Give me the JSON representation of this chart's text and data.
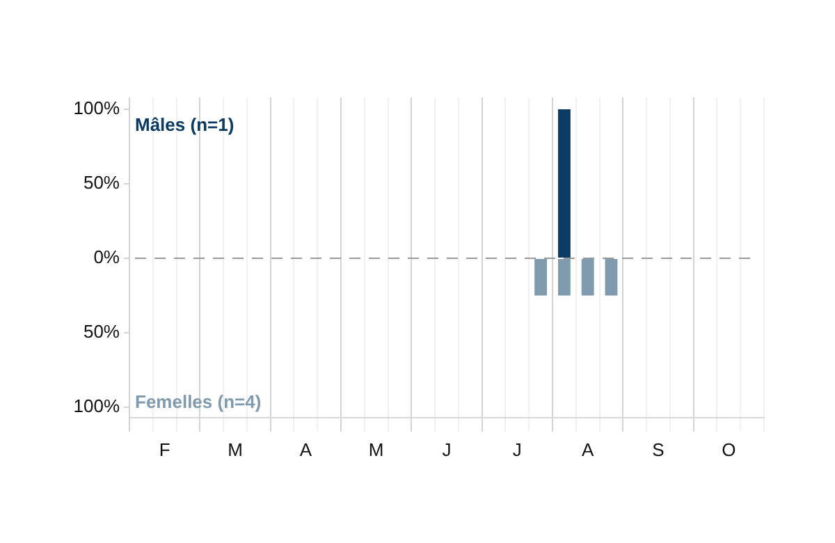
{
  "chart_data": {
    "type": "bar",
    "stacked": true,
    "categories": [
      null,
      "F",
      null,
      null,
      "M",
      null,
      null,
      "A",
      null,
      null,
      "M",
      null,
      null,
      "J",
      null,
      null,
      "J",
      null,
      null,
      "A",
      null,
      null,
      "S",
      null,
      null,
      "O",
      null
    ],
    "series": [
      {
        "name": "Mâles (n=1)",
        "color": "#0b3a63",
        "values": [
          null,
          null,
          null,
          null,
          null,
          null,
          null,
          null,
          null,
          null,
          null,
          null,
          null,
          null,
          null,
          null,
          null,
          null,
          100,
          null,
          null,
          null,
          null,
          null,
          null,
          null,
          null
        ]
      },
      {
        "name": "Femelles (n=4)",
        "color": "#7f9bad",
        "values": [
          null,
          null,
          null,
          null,
          null,
          null,
          null,
          null,
          null,
          null,
          null,
          null,
          null,
          null,
          null,
          null,
          null,
          -25,
          -25,
          -25,
          -25,
          null,
          null,
          null,
          null,
          null,
          null
        ]
      }
    ],
    "ylim": [
      -107,
      108
    ],
    "yticks": [
      {
        "value": -100,
        "label": "100%"
      },
      {
        "value": -50,
        "label": "50%"
      },
      {
        "value": 0,
        "label": "0%"
      },
      {
        "value": 50,
        "label": "50%"
      },
      {
        "value": 100,
        "label": "100%"
      }
    ],
    "grid": "x",
    "ref_lines": [
      {
        "axis": "y",
        "value": 0,
        "color": "#999999",
        "line_style": "dashed"
      }
    ]
  }
}
